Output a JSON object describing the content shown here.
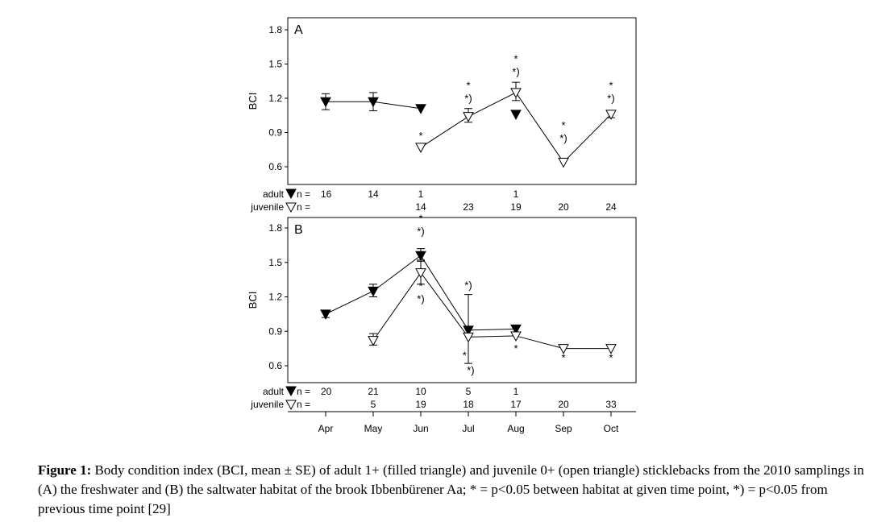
{
  "chart_data": {
    "type": "scatter",
    "months": [
      "Apr",
      "May",
      "Jun",
      "Jul",
      "Aug",
      "Sep",
      "Oct"
    ],
    "ylabel": "BCI",
    "ylim": [
      0.5,
      1.85
    ],
    "yticks": [
      "0.6",
      "0.9",
      "1.2",
      "1.5",
      "1.8"
    ],
    "panels": [
      {
        "label": "A",
        "series": [
          {
            "name": "adult",
            "marker": "filled triangle",
            "points": [
              {
                "m": 0,
                "y": 1.17,
                "lo": 1.1,
                "hi": 1.24,
                "line": true
              },
              {
                "m": 1,
                "y": 1.17,
                "lo": 1.09,
                "hi": 1.25,
                "line": true
              },
              {
                "m": 2,
                "y": 1.11,
                "line": true
              },
              {
                "m": 4,
                "y": 1.06,
                "line": false
              }
            ]
          },
          {
            "name": "juvenile",
            "marker": "open triangle",
            "points": [
              {
                "m": 2,
                "y": 0.77,
                "line": true
              },
              {
                "m": 3,
                "y": 1.04,
                "lo": 0.99,
                "hi": 1.11,
                "line": true
              },
              {
                "m": 4,
                "y": 1.25,
                "lo": 1.18,
                "hi": 1.34,
                "line": true
              },
              {
                "m": 5,
                "y": 0.64,
                "line": true
              },
              {
                "m": 6,
                "y": 1.06,
                "lo": 1.03,
                "hi": 1.09,
                "line": true
              }
            ]
          }
        ],
        "annotations": [
          {
            "m": 2,
            "y": 0.84,
            "text": "*"
          },
          {
            "m": 3,
            "y": 1.23,
            "text": "*"
          },
          {
            "m": 3,
            "y": 1.17,
            "text": "*)"
          },
          {
            "m": 4,
            "y": 1.46,
            "text": "*"
          },
          {
            "m": 4,
            "y": 1.4,
            "text": "*)"
          },
          {
            "m": 5,
            "y": 0.88,
            "text": "*"
          },
          {
            "m": 5,
            "y": 0.82,
            "text": "*)"
          },
          {
            "m": 6,
            "y": 1.23,
            "text": "*"
          },
          {
            "m": 6,
            "y": 1.17,
            "text": "*)"
          }
        ],
        "counts": {
          "adult_label": "adult",
          "juvenile_label": "juvenile",
          "n_label": "n =",
          "adult": [
            "16",
            "14",
            "1",
            "",
            "1",
            "",
            ""
          ],
          "juvenile": [
            "",
            "",
            "14",
            "23",
            "19",
            "20",
            "24"
          ]
        }
      },
      {
        "label": "B",
        "series": [
          {
            "name": "adult",
            "marker": "filled triangle",
            "points": [
              {
                "m": 0,
                "y": 1.05,
                "lo": 1.02,
                "hi": 1.08,
                "line": true
              },
              {
                "m": 1,
                "y": 1.25,
                "lo": 1.2,
                "hi": 1.31,
                "line": true
              },
              {
                "m": 2,
                "y": 1.56,
                "lo": 1.52,
                "hi": 1.62,
                "line": true
              },
              {
                "m": 3,
                "y": 0.91,
                "line": true
              },
              {
                "m": 4,
                "y": 0.92,
                "line": true
              }
            ]
          },
          {
            "name": "juvenile",
            "marker": "open triangle",
            "points": [
              {
                "m": 1,
                "y": 0.82,
                "lo": 0.78,
                "hi": 0.88,
                "line": true
              },
              {
                "m": 2,
                "y": 1.41,
                "lo": 1.31,
                "hi": 1.51,
                "line": true
              },
              {
                "m": 3,
                "y": 0.85,
                "lo": 0.62,
                "hi": 1.22,
                "line": true
              },
              {
                "m": 4,
                "y": 0.86,
                "line": true
              },
              {
                "m": 5,
                "y": 0.75,
                "line": true
              },
              {
                "m": 6,
                "y": 0.75,
                "line": true
              }
            ]
          }
        ],
        "annotations": [
          {
            "m": 2,
            "y": 1.8,
            "text": "*"
          },
          {
            "m": 2,
            "y": 1.74,
            "text": "*)"
          },
          {
            "m": 2,
            "y": 1.21,
            "text": "*"
          },
          {
            "m": 2,
            "y": 1.15,
            "text": "*)"
          },
          {
            "m": 3,
            "y": 1.27,
            "text": "*)"
          },
          {
            "m": 2.92,
            "y": 0.66,
            "text": "*"
          },
          {
            "m": 3.05,
            "y": 0.53,
            "text": "*)"
          },
          {
            "m": 4,
            "y": 0.72,
            "text": "*"
          },
          {
            "m": 5,
            "y": 0.64,
            "text": "*"
          },
          {
            "m": 6,
            "y": 0.64,
            "text": "*"
          }
        ],
        "counts": {
          "adult_label": "adult",
          "juvenile_label": "juvenile",
          "n_label": "n =",
          "adult": [
            "20",
            "21",
            "10",
            "5",
            "1",
            "",
            ""
          ],
          "juvenile": [
            "",
            "5",
            "19",
            "18",
            "17",
            "20",
            "33"
          ]
        }
      }
    ]
  },
  "caption": {
    "label": "Figure 1:",
    "text": " Body condition index (BCI, mean ± SE) of adult 1+ (filled triangle) and juvenile 0+ (open triangle) sticklebacks from the 2010 samplings in (A) the freshwater and (B) the saltwater habitat of the brook Ibbenbürener Aa; * = p<0.05 between habitat at given time point, *) = p<0.05 from previous time point [29]"
  }
}
